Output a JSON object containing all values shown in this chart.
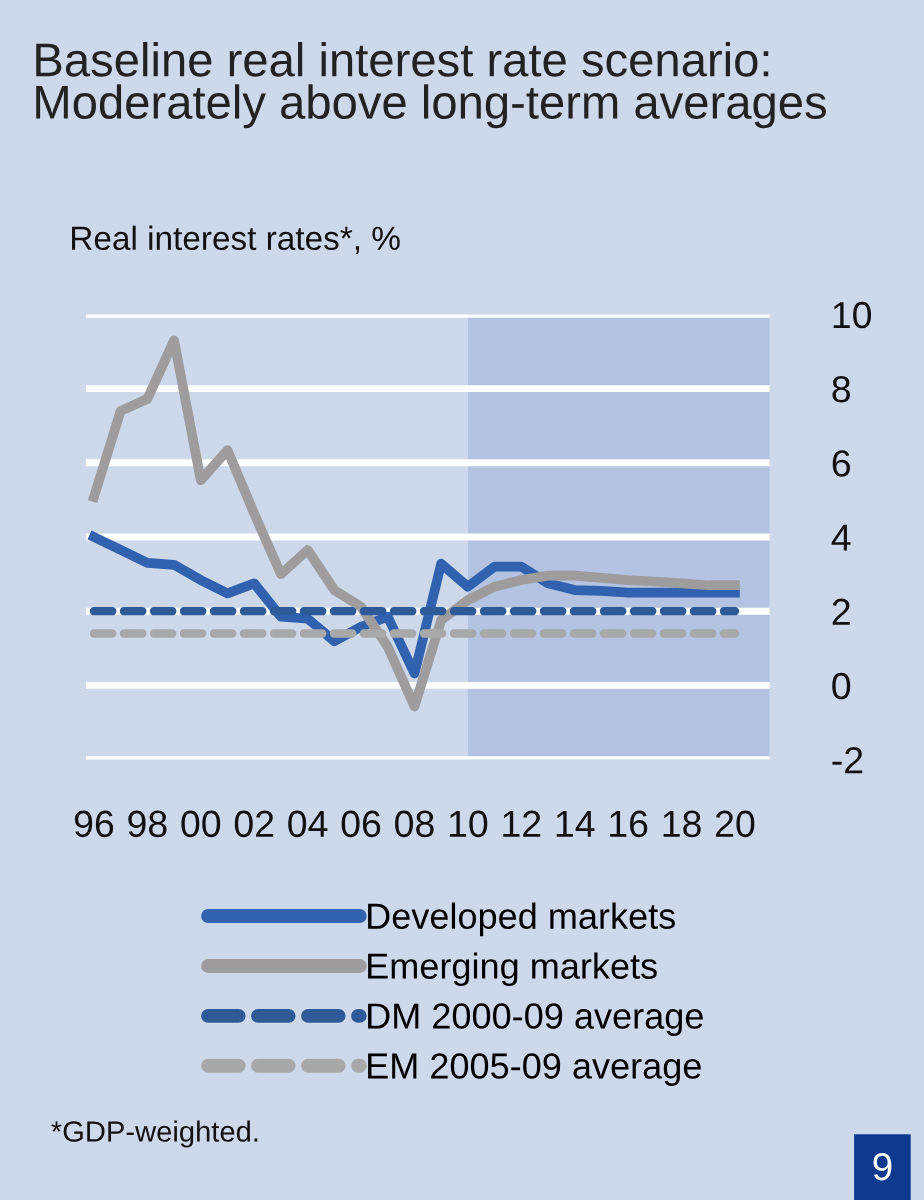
{
  "chart_data": {
    "type": "line",
    "title": "Baseline real interest rate scenario: Moderately above long-term averages",
    "subtitle": "Real interest rates*, %",
    "x": [
      1996,
      1997,
      1998,
      1999,
      2000,
      2001,
      2002,
      2003,
      2004,
      2005,
      2006,
      2007,
      2008,
      2009,
      2010,
      2011,
      2012,
      2013,
      2014,
      2015,
      2016,
      2017,
      2018,
      2019,
      2020
    ],
    "series": [
      {
        "name": "Developed markets",
        "color": "#3162b0",
        "line_style": "solid",
        "values": [
          4.0,
          3.65,
          3.3,
          3.25,
          2.84,
          2.48,
          2.75,
          1.85,
          1.8,
          1.19,
          1.58,
          1.85,
          0.32,
          3.28,
          2.66,
          3.2,
          3.2,
          2.75,
          2.57,
          2.55,
          2.5,
          2.5,
          2.5,
          2.5,
          2.5
        ]
      },
      {
        "name": "Emerging markets",
        "color": "#9e9c9c",
        "line_style": "solid",
        "values": [
          5.08,
          7.4,
          7.72,
          9.3,
          5.53,
          6.34,
          4.63,
          3.0,
          3.65,
          2.57,
          2.12,
          1.04,
          -0.57,
          1.76,
          2.3,
          2.66,
          2.84,
          2.96,
          2.96,
          2.9,
          2.84,
          2.8,
          2.75,
          2.7,
          2.7
        ]
      },
      {
        "name": "DM 2000-09 average",
        "color": "#2e5a97",
        "line_style": "dashed",
        "values": [
          2.0,
          2.0,
          2.0,
          2.0,
          2.0,
          2.0,
          2.0,
          2.0,
          2.0,
          2.0,
          2.0,
          2.0,
          2.0,
          2.0,
          2.0,
          2.0,
          2.0,
          2.0,
          2.0,
          2.0,
          2.0,
          2.0,
          2.0,
          2.0,
          2.0
        ]
      },
      {
        "name": "EM 2005-09 average",
        "color": "#a8a8a8",
        "line_style": "dashed",
        "values": [
          1.4,
          1.4,
          1.4,
          1.4,
          1.4,
          1.4,
          1.4,
          1.4,
          1.4,
          1.4,
          1.4,
          1.4,
          1.4,
          1.4,
          1.4,
          1.4,
          1.4,
          1.4,
          1.4,
          1.4,
          1.4,
          1.4,
          1.4,
          1.4,
          1.4
        ]
      }
    ],
    "xlim": [
      1995.7,
      2021.3
    ],
    "xticks": [
      {
        "value": 1996,
        "label": "96"
      },
      {
        "value": 1998,
        "label": "98"
      },
      {
        "value": 2000,
        "label": "00"
      },
      {
        "value": 2002,
        "label": "02"
      },
      {
        "value": 2004,
        "label": "04"
      },
      {
        "value": 2006,
        "label": "06"
      },
      {
        "value": 2008,
        "label": "08"
      },
      {
        "value": 2010,
        "label": "10"
      },
      {
        "value": 2012,
        "label": "12"
      },
      {
        "value": 2014,
        "label": "14"
      },
      {
        "value": 2016,
        "label": "16"
      },
      {
        "value": 2018,
        "label": "18"
      },
      {
        "value": 2020,
        "label": "20"
      }
    ],
    "ylim": [
      -2,
      10
    ],
    "yticks": [
      -2,
      0,
      2,
      4,
      6,
      8,
      10
    ],
    "bands": [
      {
        "axis": "x",
        "from": 2010,
        "to": 2021.3,
        "color": "#b3c3e1"
      }
    ],
    "grid": "y",
    "legend": "bottom",
    "annotations": [
      "*GDP-weighted.",
      "9"
    ]
  }
}
